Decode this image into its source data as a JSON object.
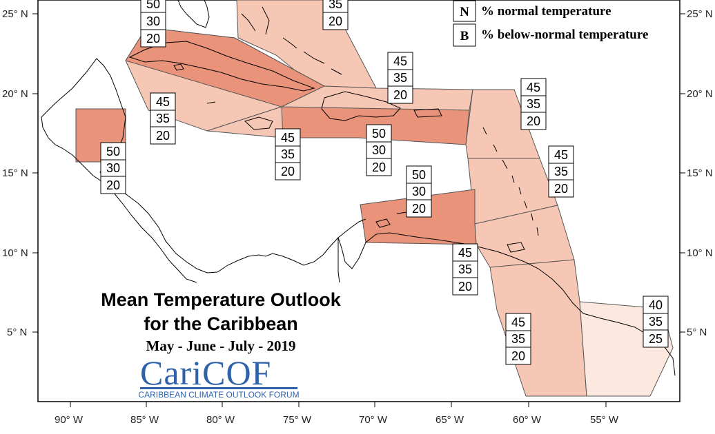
{
  "map": {
    "title_line1": "Mean Temperature Outlook",
    "title_line2": "for the Caribbean",
    "season": "May - June - July - 2019",
    "logo_text_cari": "Cari",
    "logo_text_cof": "COF",
    "logo_subtitle": "CARIBBEAN CLIMATE OUTLOOK FORUM",
    "legend": [
      {
        "letter": "N",
        "label": "% normal temperature"
      },
      {
        "letter": "B",
        "label": "% below-normal temperature"
      }
    ],
    "lat_labels": [
      "25° N",
      "20° N",
      "15° N",
      "10° N",
      "5° N"
    ],
    "lon_labels": [
      "90° W",
      "85° W",
      "80° W",
      "75° W",
      "70° W",
      "65° W",
      "60° W",
      "55° W"
    ],
    "colors": {
      "strong": "#e8937a",
      "medium": "#f6c7b4",
      "light": "#fde8df"
    },
    "probability_boxes": [
      {
        "id": "bahamas-nw",
        "values": [
          "50",
          "30",
          "20"
        ]
      },
      {
        "id": "bahamas-se",
        "values": [
          "35",
          "20"
        ]
      },
      {
        "id": "belize",
        "values": [
          "50",
          "30",
          "20"
        ]
      },
      {
        "id": "cayman",
        "values": [
          "45",
          "35",
          "20"
        ]
      },
      {
        "id": "jamaica",
        "values": [
          "45",
          "35",
          "20"
        ]
      },
      {
        "id": "hispaniola-north",
        "values": [
          "45",
          "35",
          "20"
        ]
      },
      {
        "id": "hispaniola-south",
        "values": [
          "50",
          "30",
          "20"
        ]
      },
      {
        "id": "leeward-north",
        "values": [
          "45",
          "35",
          "20"
        ]
      },
      {
        "id": "windward",
        "values": [
          "45",
          "35",
          "20"
        ]
      },
      {
        "id": "abc-islands",
        "values": [
          "50",
          "30",
          "20"
        ]
      },
      {
        "id": "trinidad",
        "values": [
          "45",
          "35",
          "20"
        ]
      },
      {
        "id": "guyana",
        "values": [
          "45",
          "35",
          "20"
        ]
      },
      {
        "id": "french-guiana",
        "values": [
          "40",
          "35",
          "25"
        ]
      }
    ]
  }
}
